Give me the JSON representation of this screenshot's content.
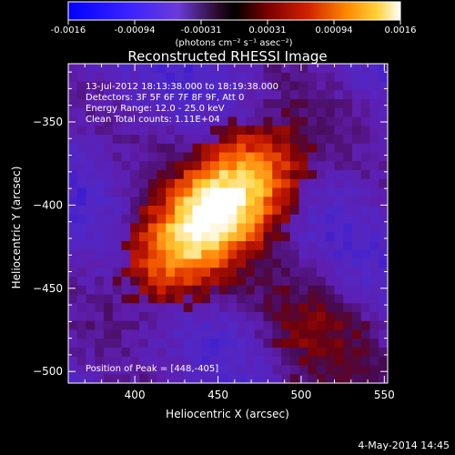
{
  "colorbar": {
    "tick_labels": [
      "-0.0016",
      "-0.00094",
      "-0.00031",
      "0.00031",
      "0.00094",
      "0.0016"
    ],
    "range": [
      -0.0016,
      0.0016
    ],
    "units_label": "(photons cm⁻² s⁻¹ asec⁻²)"
  },
  "chart_data": {
    "type": "heatmap",
    "title": "Reconstructed RHESSI Image",
    "xlabel": "Heliocentric X (arcsec)",
    "ylabel": "Heliocentric Y (arcsec)",
    "xlim": [
      360,
      552
    ],
    "ylim": [
      -507,
      -315
    ],
    "xticks": [
      400,
      450,
      500,
      550
    ],
    "yticks": [
      -350,
      -400,
      -450,
      -500
    ],
    "peak_marker": [
      448,
      -405
    ],
    "annotations": [
      "13-Jul-2012 18:13:38.000 to 18:19:38.000",
      "Detectors: 3F 5F 6F 7F 8F 9F, Att 0",
      "Energy Range: 12.0 - 25.0 keV",
      "Clean     Total counts: 1.11E+04"
    ],
    "peak_label": "Position of Peak = [448,-405]"
  },
  "footer_date": "4-May-2014 14:45"
}
